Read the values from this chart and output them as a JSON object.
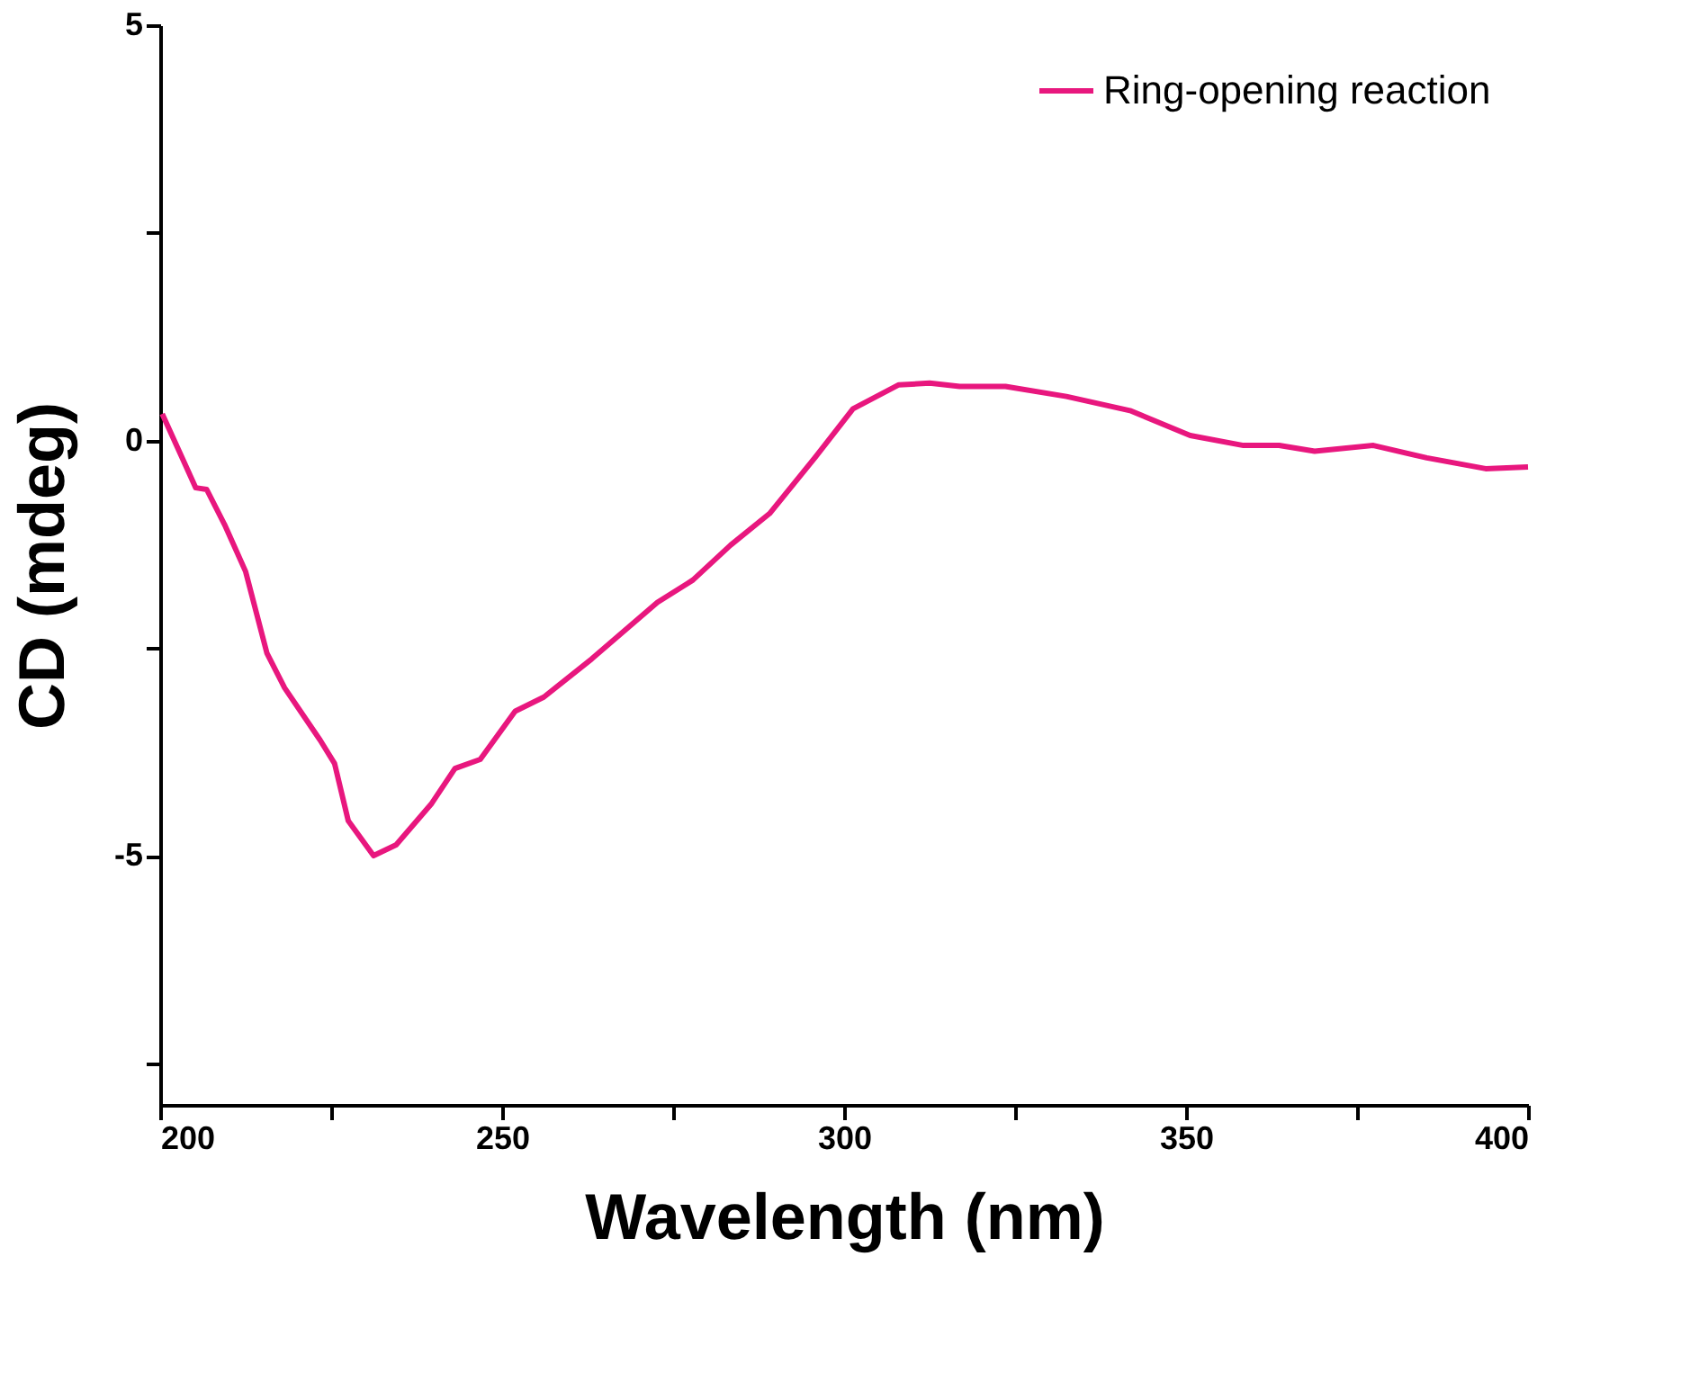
{
  "chart_data": {
    "type": "line",
    "xlabel": "Wavelength (nm)",
    "ylabel": "CD (mdeg)",
    "xlim": [
      200,
      400
    ],
    "ylim": [
      -8,
      5
    ],
    "xticks": [
      200,
      {
        "value": 225,
        "label": null
      },
      250,
      {
        "value": 275,
        "label": null
      },
      300,
      {
        "value": 325,
        "label": null
      },
      350,
      {
        "value": 375,
        "label": null
      },
      400
    ],
    "yticks": [
      {
        "value": -7.5,
        "label": null
      },
      -5,
      {
        "value": -2.5,
        "label": null
      },
      0,
      {
        "value": 2.5,
        "label": null
      },
      5
    ],
    "grid": false,
    "legend": "top right",
    "marker": "none",
    "line_style": "solid",
    "series": [
      {
        "name": "Ring-opening reaction",
        "color": "#e8177e",
        "x": [
          200.3,
          205.2,
          206.8,
          209.4,
          212.5,
          215.6,
          218.2,
          223.4,
          225.5,
          227.5,
          231.2,
          234.5,
          239.7,
          243.1,
          246.8,
          251.9,
          256.1,
          263.1,
          272.7,
          277.9,
          283.4,
          289.1,
          296.1,
          301.3,
          308,
          312.5,
          316.9,
          323.6,
          332.5,
          341.8,
          350.6,
          358.4,
          363.6,
          368.8,
          377.4,
          385.2,
          393.8,
          400
        ],
        "values": [
          0.32,
          -0.57,
          -0.59,
          -1.01,
          -1.58,
          -2.56,
          -2.98,
          -3.61,
          -3.89,
          -4.58,
          -5.0,
          -4.87,
          -4.37,
          -3.95,
          -3.84,
          -3.26,
          -3.09,
          -2.63,
          -1.95,
          -1.68,
          -1.26,
          -0.88,
          -0.17,
          0.38,
          0.67,
          0.69,
          0.65,
          0.65,
          0.53,
          0.36,
          0.06,
          -0.06,
          -0.06,
          -0.13,
          -0.06,
          -0.21,
          -0.34,
          -0.32
        ]
      }
    ]
  }
}
